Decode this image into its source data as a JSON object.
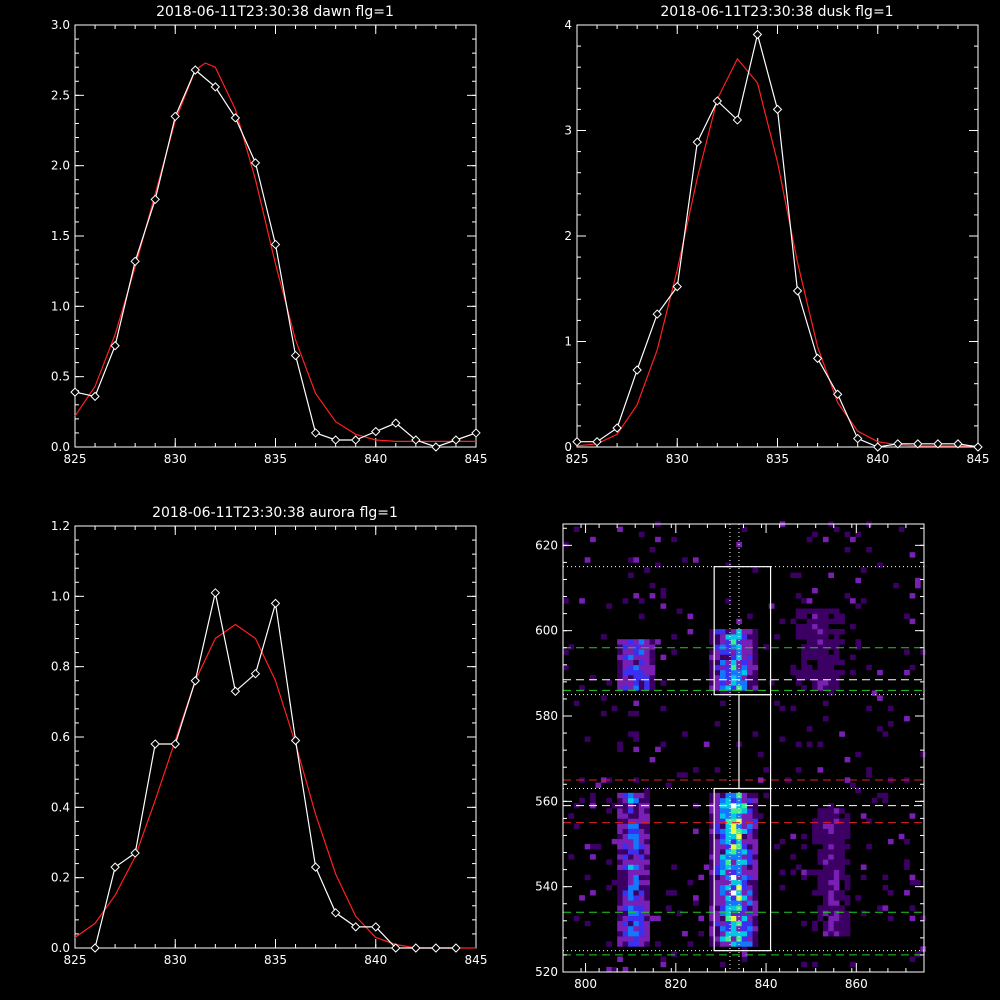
{
  "chart_data": [
    {
      "type": "line",
      "title": "2018-06-11T23:30:38 dawn flg=1",
      "xlim": [
        825,
        845
      ],
      "ylim": [
        0,
        3.0
      ],
      "xticks": [
        "825",
        "830",
        "835",
        "840",
        "845"
      ],
      "yticks": [
        "0.0",
        "0.5",
        "1.0",
        "1.5",
        "2.0",
        "2.5",
        "3.0"
      ],
      "grid": false,
      "series": [
        {
          "color": "#ffffff",
          "marker": "diamond",
          "x": [
            825,
            826,
            827,
            828,
            829,
            830,
            831,
            832,
            833,
            834,
            835,
            836,
            837,
            838,
            839,
            840,
            841,
            842,
            843,
            844,
            845
          ],
          "y": [
            0.39,
            0.36,
            0.72,
            1.32,
            1.76,
            2.35,
            2.68,
            2.56,
            2.34,
            2.02,
            1.44,
            0.65,
            0.1,
            0.05,
            0.05,
            0.11,
            0.17,
            0.05,
            0.0,
            0.05,
            0.1
          ]
        },
        {
          "color": "#ff2020",
          "x": [
            825,
            826,
            827,
            828,
            829,
            830,
            831,
            831.5,
            832,
            833,
            834,
            835,
            836,
            837,
            838,
            839,
            840,
            841,
            842,
            843,
            844,
            845
          ],
          "y": [
            0.22,
            0.43,
            0.8,
            1.28,
            1.8,
            2.32,
            2.68,
            2.73,
            2.7,
            2.4,
            1.9,
            1.3,
            0.76,
            0.38,
            0.18,
            0.09,
            0.05,
            0.04,
            0.04,
            0.04,
            0.04,
            0.04
          ]
        }
      ]
    },
    {
      "type": "line",
      "title": "2018-06-11T23:30:38 dusk flg=1",
      "xlim": [
        825,
        845
      ],
      "ylim": [
        0,
        4
      ],
      "xticks": [
        "825",
        "830",
        "835",
        "840",
        "845"
      ],
      "yticks": [
        "0",
        "1",
        "2",
        "3",
        "4"
      ],
      "grid": false,
      "series": [
        {
          "color": "#ffffff",
          "marker": "diamond",
          "x": [
            825,
            826,
            827,
            828,
            829,
            830,
            831,
            832,
            833,
            834,
            835,
            836,
            837,
            838,
            839,
            840,
            841,
            842,
            843,
            844,
            845
          ],
          "y": [
            0.05,
            0.05,
            0.18,
            0.73,
            1.26,
            1.52,
            2.89,
            3.28,
            3.1,
            3.91,
            3.2,
            1.48,
            0.84,
            0.5,
            0.08,
            0.0,
            0.03,
            0.03,
            0.03,
            0.03,
            0.0
          ]
        },
        {
          "color": "#ff2020",
          "x": [
            825,
            826,
            827,
            828,
            829,
            830,
            831,
            832,
            833,
            834,
            835,
            836,
            837,
            838,
            839,
            840,
            841,
            842,
            843,
            844,
            845
          ],
          "y": [
            0.01,
            0.03,
            0.12,
            0.4,
            0.92,
            1.68,
            2.55,
            3.3,
            3.68,
            3.45,
            2.7,
            1.75,
            0.95,
            0.42,
            0.15,
            0.05,
            0.02,
            0.01,
            0.01,
            0.01,
            0.01
          ]
        }
      ]
    },
    {
      "type": "line",
      "title": "2018-06-11T23:30:38 aurora flg=1",
      "xlim": [
        825,
        845
      ],
      "ylim": [
        0,
        1.2
      ],
      "xticks": [
        "825",
        "830",
        "835",
        "840",
        "845"
      ],
      "yticks": [
        "0.0",
        "0.2",
        "0.4",
        "0.6",
        "0.8",
        "1.0",
        "1.2"
      ],
      "grid": false,
      "series": [
        {
          "color": "#ffffff",
          "marker": "diamond",
          "x": [
            826,
            827,
            828,
            829,
            830,
            831,
            832,
            833,
            834,
            835,
            836,
            837,
            838,
            839,
            840,
            841,
            842,
            843,
            844
          ],
          "y": [
            0.0,
            0.23,
            0.27,
            0.58,
            0.58,
            0.76,
            1.01,
            0.73,
            0.78,
            0.98,
            0.59,
            0.23,
            0.1,
            0.06,
            0.06,
            0.0,
            0.0,
            0.0,
            0.0
          ]
        },
        {
          "color": "#ff2020",
          "x": [
            825,
            826,
            827,
            828,
            829,
            830,
            831,
            832,
            833,
            834,
            835,
            836,
            837,
            838,
            839,
            840,
            841,
            842,
            843,
            844,
            845
          ],
          "y": [
            0.03,
            0.07,
            0.15,
            0.26,
            0.42,
            0.59,
            0.76,
            0.88,
            0.92,
            0.88,
            0.76,
            0.58,
            0.38,
            0.21,
            0.09,
            0.03,
            0.01,
            0.0,
            0.0,
            0.0,
            0.0
          ]
        }
      ]
    },
    {
      "type": "heatmap",
      "title": "",
      "xlim": [
        795,
        875
      ],
      "ylim": [
        520,
        625
      ],
      "xticks": [
        "800",
        "820",
        "840",
        "860"
      ],
      "yticks": [
        "520",
        "540",
        "560",
        "580",
        "600",
        "620"
      ],
      "colormap": [
        "#000000",
        "#3c0064",
        "#7a1fb4",
        "#3b2ff0",
        "#1478ff",
        "#00c8e6",
        "#3cf08c",
        "#e6ff3c",
        "#ffffff"
      ],
      "hot_regions": [
        {
          "x": [
            806,
            814
          ],
          "y": [
            525,
            562
          ],
          "level": 0.55
        },
        {
          "x": [
            806,
            815
          ],
          "y": [
            585,
            597
          ],
          "level": 0.6
        },
        {
          "x": [
            827,
            838
          ],
          "y": [
            525,
            562
          ],
          "level": 0.85
        },
        {
          "x": [
            827,
            838
          ],
          "y": [
            585,
            600
          ],
          "level": 0.75
        },
        {
          "x": [
            850,
            858
          ],
          "y": [
            528,
            558
          ],
          "level": 0.25
        },
        {
          "x": [
            845,
            858
          ],
          "y": [
            585,
            605
          ],
          "level": 0.2
        }
      ],
      "boxes": [
        {
          "x": [
            828.5,
            841
          ],
          "y": [
            585,
            615
          ],
          "color": "#ffffff"
        },
        {
          "x": [
            834,
            841
          ],
          "y": [
            563,
            585
          ],
          "color": "#ffffff"
        },
        {
          "x": [
            828.5,
            841
          ],
          "y": [
            525,
            563
          ],
          "color": "#ffffff"
        }
      ],
      "hlines": [
        {
          "y": 615,
          "style": "dotted",
          "color": "#ffffff"
        },
        {
          "y": 596,
          "style": "dashed",
          "color": "#22cc22"
        },
        {
          "y": 588.5,
          "style": "dashed",
          "color": "#ffffff"
        },
        {
          "y": 586,
          "style": "dashed",
          "color": "#22cc22"
        },
        {
          "y": 585,
          "style": "dotted",
          "color": "#ffffff"
        },
        {
          "y": 565,
          "style": "dashed",
          "color": "#dd2222"
        },
        {
          "y": 563,
          "style": "dotted",
          "color": "#ffffff"
        },
        {
          "y": 559,
          "style": "dashed",
          "color": "#ffffff"
        },
        {
          "y": 555,
          "style": "dashed",
          "color": "#dd2222"
        },
        {
          "y": 534,
          "style": "dashed",
          "color": "#22cc22"
        },
        {
          "y": 525,
          "style": "dotted",
          "color": "#ffffff"
        },
        {
          "y": 524,
          "style": "dashed",
          "color": "#22cc22"
        }
      ],
      "vlines": [
        {
          "x": 832,
          "style": "dotted",
          "color": "#ffffff"
        },
        {
          "x": 834,
          "style": "dotted",
          "color": "#ffffff"
        }
      ]
    }
  ]
}
